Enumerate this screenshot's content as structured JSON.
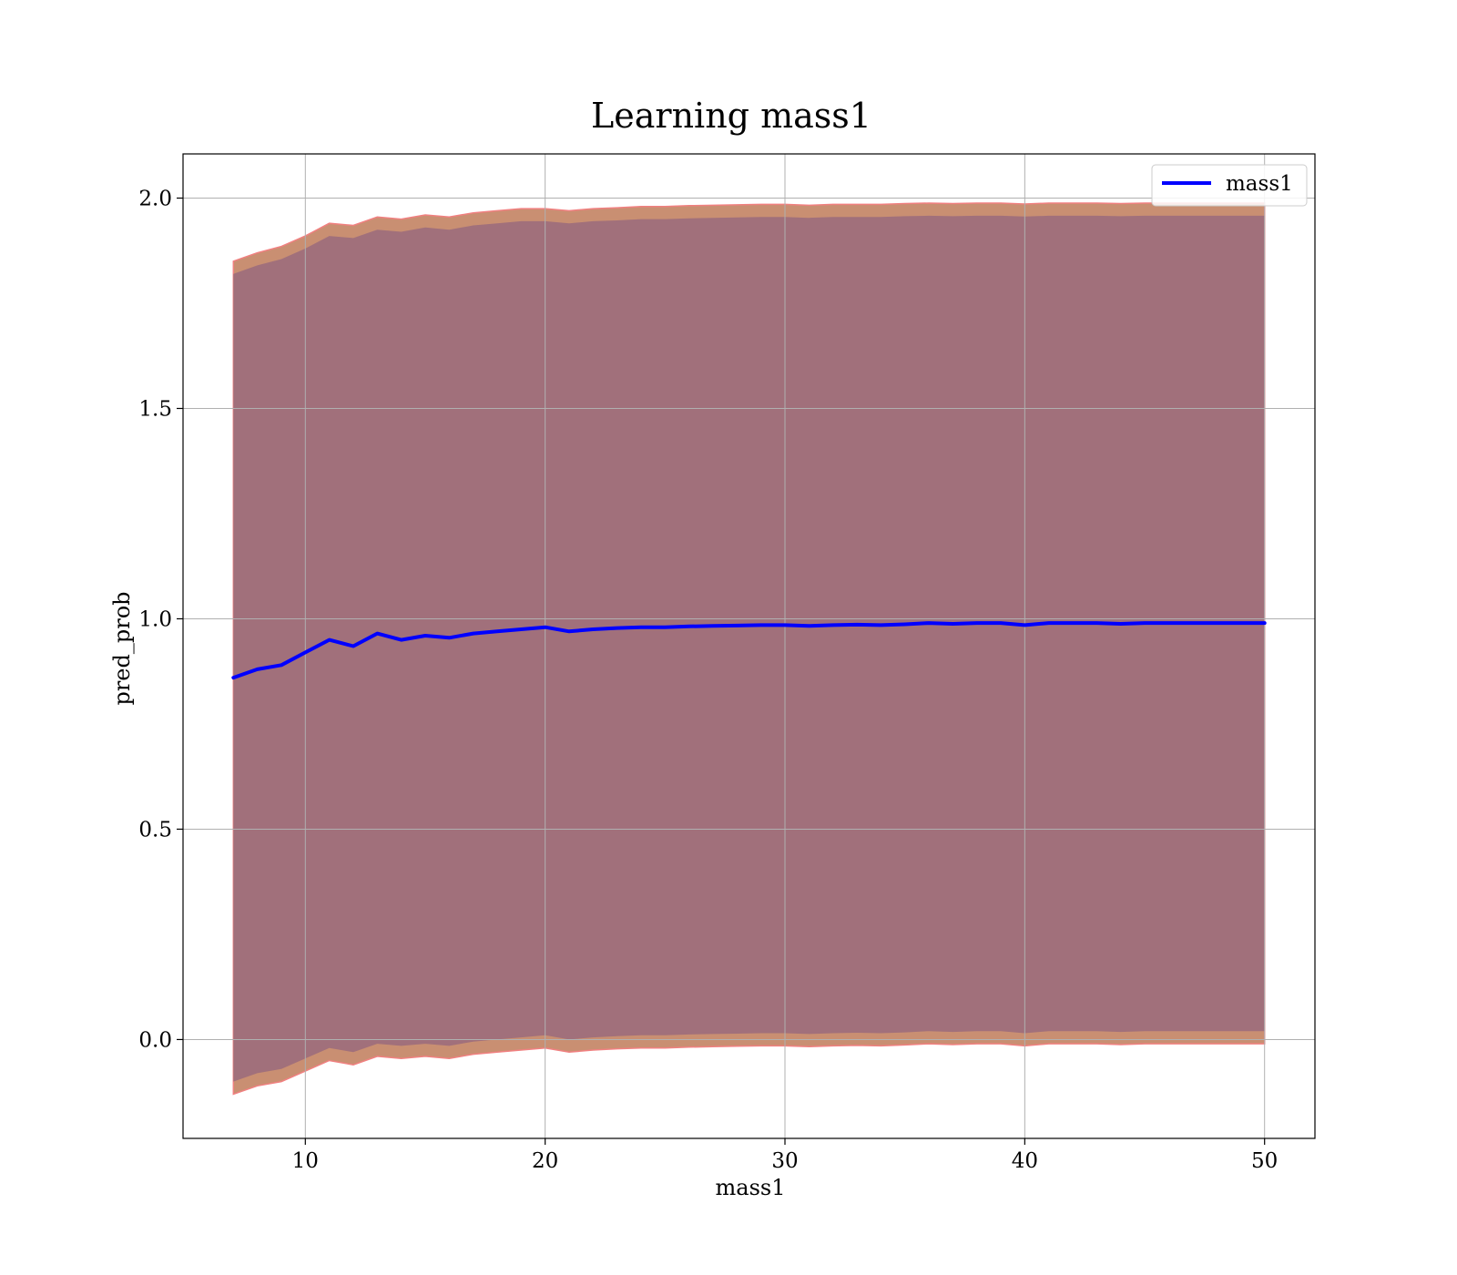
{
  "chart_data": {
    "type": "line",
    "title": "Learning mass1",
    "xlabel": "mass1",
    "ylabel": "pred_prob",
    "xlim": [
      4.9,
      52.1
    ],
    "ylim": [
      -0.235,
      2.105
    ],
    "x_ticks": [
      10,
      20,
      30,
      40,
      50
    ],
    "y_ticks": [
      0.0,
      0.5,
      1.0,
      1.5,
      2.0
    ],
    "x_tick_labels": [
      "10",
      "20",
      "30",
      "40",
      "50"
    ],
    "y_tick_labels": [
      "0.0",
      "0.5",
      "1.0",
      "1.5",
      "2.0"
    ],
    "grid": true,
    "legend": {
      "placement": "top-right",
      "entries": [
        "mass1"
      ]
    },
    "series": [
      {
        "name": "mass1",
        "color": "#0000ff",
        "x": [
          7,
          8,
          9,
          10,
          11,
          12,
          13,
          14,
          15,
          16,
          17,
          18,
          19,
          20,
          21,
          22,
          23,
          24,
          25,
          26,
          27,
          28,
          29,
          30,
          31,
          32,
          33,
          34,
          35,
          36,
          37,
          38,
          39,
          40,
          41,
          42,
          43,
          44,
          45,
          46,
          47,
          48,
          49,
          50
        ],
        "y": [
          0.86,
          0.88,
          0.89,
          0.92,
          0.95,
          0.935,
          0.965,
          0.95,
          0.96,
          0.955,
          0.965,
          0.97,
          0.975,
          0.98,
          0.97,
          0.975,
          0.978,
          0.98,
          0.98,
          0.982,
          0.983,
          0.984,
          0.985,
          0.985,
          0.983,
          0.985,
          0.986,
          0.985,
          0.987,
          0.99,
          0.988,
          0.99,
          0.99,
          0.985,
          0.99,
          0.99,
          0.99,
          0.988,
          0.99,
          0.99,
          0.99,
          0.99,
          0.99,
          0.99
        ],
        "band_upper": [
          1.82,
          1.84,
          1.855,
          1.88,
          1.91,
          1.905,
          1.925,
          1.92,
          1.93,
          1.925,
          1.935,
          1.94,
          1.945,
          1.945,
          1.94,
          1.945,
          1.947,
          1.95,
          1.95,
          1.952,
          1.953,
          1.954,
          1.955,
          1.955,
          1.953,
          1.955,
          1.955,
          1.955,
          1.957,
          1.958,
          1.957,
          1.958,
          1.958,
          1.956,
          1.958,
          1.958,
          1.958,
          1.957,
          1.958,
          1.958,
          1.958,
          1.958,
          1.958,
          1.958
        ],
        "band_lower": [
          -0.1,
          -0.08,
          -0.07,
          -0.045,
          -0.02,
          -0.03,
          -0.01,
          -0.015,
          -0.01,
          -0.015,
          -0.005,
          0.0,
          0.005,
          0.01,
          0.0,
          0.005,
          0.008,
          0.01,
          0.01,
          0.012,
          0.013,
          0.014,
          0.015,
          0.015,
          0.013,
          0.015,
          0.016,
          0.015,
          0.017,
          0.02,
          0.018,
          0.02,
          0.02,
          0.015,
          0.02,
          0.02,
          0.02,
          0.018,
          0.02,
          0.02,
          0.02,
          0.02,
          0.02,
          0.02
        ],
        "outer_upper": [
          1.85,
          1.87,
          1.885,
          1.91,
          1.94,
          1.935,
          1.955,
          1.95,
          1.96,
          1.955,
          1.965,
          1.97,
          1.975,
          1.975,
          1.97,
          1.975,
          1.977,
          1.98,
          1.98,
          1.982,
          1.983,
          1.984,
          1.985,
          1.985,
          1.983,
          1.985,
          1.985,
          1.985,
          1.987,
          1.988,
          1.987,
          1.988,
          1.988,
          1.986,
          1.988,
          1.988,
          1.988,
          1.987,
          1.988,
          1.988,
          1.988,
          1.988,
          1.988,
          1.988
        ],
        "outer_lower": [
          -0.13,
          -0.11,
          -0.1,
          -0.075,
          -0.05,
          -0.06,
          -0.04,
          -0.045,
          -0.04,
          -0.045,
          -0.035,
          -0.03,
          -0.025,
          -0.02,
          -0.03,
          -0.025,
          -0.022,
          -0.02,
          -0.02,
          -0.018,
          -0.017,
          -0.016,
          -0.015,
          -0.015,
          -0.017,
          -0.015,
          -0.014,
          -0.015,
          -0.013,
          -0.01,
          -0.012,
          -0.01,
          -0.01,
          -0.015,
          -0.01,
          -0.01,
          -0.01,
          -0.012,
          -0.01,
          -0.01,
          -0.01,
          -0.01,
          -0.01,
          -0.01
        ]
      }
    ],
    "colors": {
      "inner_band": "#a1707b",
      "outer_band": "#c98f72",
      "outer_edge": "#f08080",
      "line": "#0000ff"
    }
  }
}
